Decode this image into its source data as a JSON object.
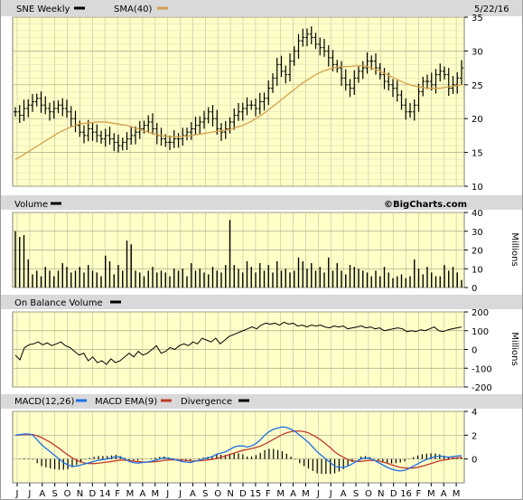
{
  "chart_data": [
    {
      "type": "ohlc",
      "panel": "price",
      "title": "SNE Weekly",
      "date": "5/22/16",
      "legend": [
        {
          "label": "SNE Weekly",
          "color": "#000000"
        },
        {
          "label": "SMA(40)",
          "color": "#d4a04a"
        }
      ],
      "watermark": "©BigCharts.com",
      "ylim": [
        10,
        35
      ],
      "yticks": [
        10,
        15,
        20,
        25,
        30,
        35
      ],
      "series": [
        {
          "name": "SNE Weekly",
          "values": [
            21,
            20.5,
            21.5,
            22,
            22.5,
            23,
            22,
            21.5,
            21,
            21.5,
            22,
            21.5,
            21,
            20,
            19,
            18,
            17.5,
            18.5,
            18,
            17.5,
            17,
            17.5,
            17,
            16.5,
            16,
            16.5,
            17,
            17.5,
            18,
            18.5,
            19,
            19.5,
            18.5,
            17.5,
            17,
            16.5,
            16.5,
            17,
            17,
            17.5,
            18,
            18.5,
            19,
            19.5,
            20,
            21,
            20,
            18.5,
            18,
            18.5,
            19.5,
            20.5,
            21,
            21.5,
            22,
            22,
            21.5,
            22.5,
            23,
            24.5,
            26,
            28,
            27,
            26.5,
            28.5,
            30,
            31.5,
            32,
            32.5,
            32,
            31,
            30.5,
            30,
            29,
            28,
            27.5,
            26,
            25,
            24.5,
            26,
            27,
            27.5,
            28.5,
            28.5,
            27.5,
            26.5,
            25.5,
            25,
            24.5,
            23.5,
            22,
            21,
            21,
            22,
            24,
            25.5,
            25.5,
            25,
            26.5,
            27,
            26.5,
            24.5,
            25,
            26,
            27.5
          ]
        },
        {
          "name": "SMA(40)",
          "values": [
            14,
            14.3,
            14.7,
            15.1,
            15.5,
            15.9,
            16.3,
            16.7,
            17.1,
            17.5,
            17.9,
            18.2,
            18.5,
            18.8,
            19,
            19.2,
            19.3,
            19.4,
            19.4,
            19.5,
            19.5,
            19.5,
            19.4,
            19.3,
            19.2,
            19.1,
            19,
            18.8,
            18.6,
            18.4,
            18.2,
            18,
            17.8,
            17.6,
            17.5,
            17.4,
            17.3,
            17.3,
            17.3,
            17.4,
            17.4,
            17.5,
            17.6,
            17.7,
            17.8,
            17.9,
            18,
            18.1,
            18.2,
            18.3,
            18.4,
            18.6,
            18.8,
            19,
            19.3,
            19.6,
            20,
            20.4,
            20.8,
            21.3,
            21.8,
            22.3,
            22.8,
            23.3,
            23.8,
            24.3,
            24.8,
            25.3,
            25.7,
            26.1,
            26.5,
            26.8,
            27.1,
            27.3,
            27.5,
            27.6,
            27.7,
            27.7,
            27.7,
            27.8,
            27.8,
            27.8,
            27.7,
            27.5,
            27.3,
            27,
            26.7,
            26.4,
            26.1,
            25.8,
            25.5,
            25.2,
            25,
            24.8,
            24.7,
            24.6,
            24.5,
            24.5,
            24.5,
            24.5,
            24.6,
            24.7,
            24.8,
            24.9,
            25
          ]
        }
      ]
    },
    {
      "type": "bar",
      "panel": "volume",
      "title": "Volume",
      "ylabel": "Millions",
      "ylim": [
        0,
        40
      ],
      "yticks": [
        0,
        10,
        20,
        30,
        40
      ],
      "series": [
        {
          "name": "Volume",
          "values": [
            30,
            27,
            28,
            15,
            7,
            9,
            6,
            11,
            9,
            6,
            9,
            13,
            11,
            8,
            9,
            11,
            8,
            12,
            9,
            8,
            6,
            17,
            14,
            7,
            12,
            9,
            25,
            23,
            9,
            8,
            6,
            9,
            11,
            8,
            9,
            8,
            6,
            10,
            9,
            10,
            6,
            13,
            9,
            10,
            8,
            7,
            11,
            9,
            8,
            12,
            36,
            12,
            10,
            8,
            14,
            11,
            8,
            13,
            9,
            12,
            8,
            14,
            9,
            10,
            8,
            9,
            16,
            14,
            10,
            13,
            9,
            11,
            8,
            16,
            9,
            13,
            9,
            7,
            12,
            11,
            10,
            9,
            8,
            6,
            9,
            6,
            11,
            8,
            5,
            6,
            7,
            5,
            6,
            15,
            10,
            7,
            11,
            8,
            6,
            6,
            12,
            9,
            11,
            8,
            4
          ]
        }
      ]
    },
    {
      "type": "line",
      "panel": "obv",
      "title": "On Balance Volume",
      "ylabel": "Millions",
      "ylim": [
        -200,
        200
      ],
      "yticks": [
        -200,
        -100,
        0,
        100,
        200
      ],
      "series": [
        {
          "name": "On Balance Volume",
          "values": [
            -30,
            -55,
            10,
            25,
            30,
            40,
            25,
            35,
            20,
            30,
            40,
            20,
            10,
            -10,
            -30,
            -20,
            -60,
            -40,
            -70,
            -60,
            -80,
            -50,
            -70,
            -60,
            -40,
            -20,
            -40,
            -10,
            -30,
            -20,
            0,
            20,
            -20,
            -10,
            10,
            0,
            20,
            30,
            20,
            40,
            30,
            60,
            50,
            40,
            60,
            30,
            50,
            70,
            80,
            90,
            100,
            110,
            120,
            110,
            130,
            140,
            135,
            140,
            130,
            145,
            135,
            140,
            125,
            130,
            120,
            130,
            125,
            130,
            120,
            115,
            125,
            120,
            125,
            110,
            115,
            120,
            125,
            115,
            120,
            110,
            115,
            100,
            105,
            110,
            115,
            110,
            95,
            100,
            95,
            105,
            100,
            110,
            120,
            100,
            95,
            105,
            110,
            115,
            120
          ]
        }
      ]
    },
    {
      "type": "line",
      "panel": "macd",
      "title": "MACD(12,26)",
      "ylim": [
        -2,
        4
      ],
      "yticks": [
        0,
        2,
        4
      ],
      "legend": [
        {
          "label": "MACD(12,26)",
          "color": "#000000"
        },
        {
          "label": "MACD EMA(9)",
          "color": "#1e6fe6"
        },
        {
          "label": "Divergence",
          "color": "#c0392b"
        }
      ],
      "x_ticks": [
        "J",
        "J",
        "A",
        "S",
        "O",
        "N",
        "D",
        "14",
        "F",
        "M",
        "A",
        "M",
        "J",
        "J",
        "A",
        "S",
        "O",
        "N",
        "D",
        "15",
        "F",
        "M",
        "A",
        "M",
        "J",
        "J",
        "A",
        "S",
        "O",
        "N",
        "D",
        "16",
        "F",
        "M",
        "A",
        "M"
      ],
      "series": [
        {
          "name": "MACD(12,26)",
          "values": [
            2,
            2.05,
            2.1,
            2.1,
            2.0,
            1.6,
            1.2,
            0.9,
            0.6,
            0.3,
            0.0,
            -0.3,
            -0.5,
            -0.6,
            -0.6,
            -0.5,
            -0.4,
            -0.3,
            -0.2,
            -0.1,
            -0.05,
            0,
            0.1,
            0.2,
            0.15,
            0.0,
            -0.2,
            -0.3,
            -0.35,
            -0.3,
            -0.25,
            -0.2,
            -0.1,
            0,
            0.1,
            0.05,
            0,
            -0.1,
            -0.2,
            -0.25,
            -0.3,
            -0.2,
            -0.1,
            0,
            0.1,
            0.2,
            0.4,
            0.5,
            0.6,
            0.8,
            1.0,
            1.1,
            1.1,
            1.0,
            1.1,
            1.3,
            1.6,
            2.0,
            2.3,
            2.5,
            2.6,
            2.7,
            2.65,
            2.5,
            2.3,
            2.0,
            1.7,
            1.4,
            1.0,
            0.6,
            0.3,
            0.0,
            -0.3,
            -0.6,
            -0.7,
            -0.7,
            -0.6,
            -0.4,
            -0.2,
            0,
            0.1,
            0.05,
            -0.1,
            -0.3,
            -0.5,
            -0.7,
            -0.85,
            -0.95,
            -1.0,
            -0.95,
            -0.8,
            -0.6,
            -0.4,
            -0.2,
            -0.05,
            0.1,
            0.2,
            0.25,
            0.2,
            0.15,
            0.2,
            0.25,
            0.3
          ]
        },
        {
          "name": "MACD EMA(9)",
          "values": [
            2,
            2.02,
            2.05,
            2.06,
            2.05,
            1.95,
            1.8,
            1.6,
            1.4,
            1.15,
            0.9,
            0.6,
            0.35,
            0.1,
            -0.1,
            -0.25,
            -0.35,
            -0.38,
            -0.38,
            -0.35,
            -0.3,
            -0.25,
            -0.2,
            -0.15,
            -0.1,
            -0.1,
            -0.12,
            -0.18,
            -0.22,
            -0.25,
            -0.26,
            -0.25,
            -0.22,
            -0.18,
            -0.12,
            -0.08,
            -0.06,
            -0.07,
            -0.09,
            -0.12,
            -0.16,
            -0.17,
            -0.15,
            -0.12,
            -0.08,
            -0.03,
            0.05,
            0.15,
            0.25,
            0.38,
            0.5,
            0.62,
            0.72,
            0.8,
            0.88,
            0.97,
            1.08,
            1.25,
            1.45,
            1.65,
            1.85,
            2.05,
            2.2,
            2.3,
            2.35,
            2.35,
            2.3,
            2.2,
            2.0,
            1.8,
            1.55,
            1.25,
            0.95,
            0.6,
            0.35,
            0.15,
            -0.05,
            -0.15,
            -0.2,
            -0.2,
            -0.15,
            -0.12,
            -0.12,
            -0.17,
            -0.25,
            -0.35,
            -0.48,
            -0.6,
            -0.7,
            -0.75,
            -0.77,
            -0.75,
            -0.7,
            -0.6,
            -0.5,
            -0.38,
            -0.26,
            -0.15,
            -0.08,
            -0.02,
            0.05,
            0.1,
            0.15
          ]
        },
        {
          "name": "Divergence",
          "values": [
            0,
            0.03,
            0.05,
            0.04,
            -0.05,
            -0.35,
            -0.6,
            -0.7,
            -0.8,
            -0.85,
            -0.9,
            -0.9,
            -0.85,
            -0.7,
            -0.5,
            -0.25,
            -0.05,
            0.08,
            0.18,
            0.25,
            0.25,
            0.25,
            0.3,
            0.35,
            0.25,
            0.1,
            -0.08,
            -0.12,
            -0.13,
            -0.05,
            0.01,
            0.05,
            0.12,
            0.18,
            0.22,
            0.13,
            0.06,
            -0.03,
            -0.11,
            -0.13,
            -0.14,
            -0.03,
            0.05,
            0.12,
            0.18,
            0.23,
            0.35,
            0.35,
            0.35,
            0.42,
            0.5,
            0.48,
            0.38,
            0.2,
            0.22,
            0.33,
            0.52,
            0.75,
            0.85,
            0.85,
            0.75,
            0.65,
            0.45,
            0.2,
            -0.05,
            -0.35,
            -0.6,
            -0.8,
            -1.0,
            -1.2,
            -1.25,
            -1.25,
            -1.25,
            -1.2,
            -1.05,
            -0.85,
            -0.55,
            -0.25,
            0,
            0.2,
            0.25,
            0.17,
            0.02,
            -0.13,
            -0.25,
            -0.35,
            -0.37,
            -0.35,
            -0.3,
            -0.2,
            -0.03,
            0.15,
            0.3,
            0.4,
            0.45,
            0.48,
            0.46,
            0.4,
            0.28,
            0.17,
            0.15,
            0.15,
            0.15
          ]
        }
      ]
    }
  ]
}
